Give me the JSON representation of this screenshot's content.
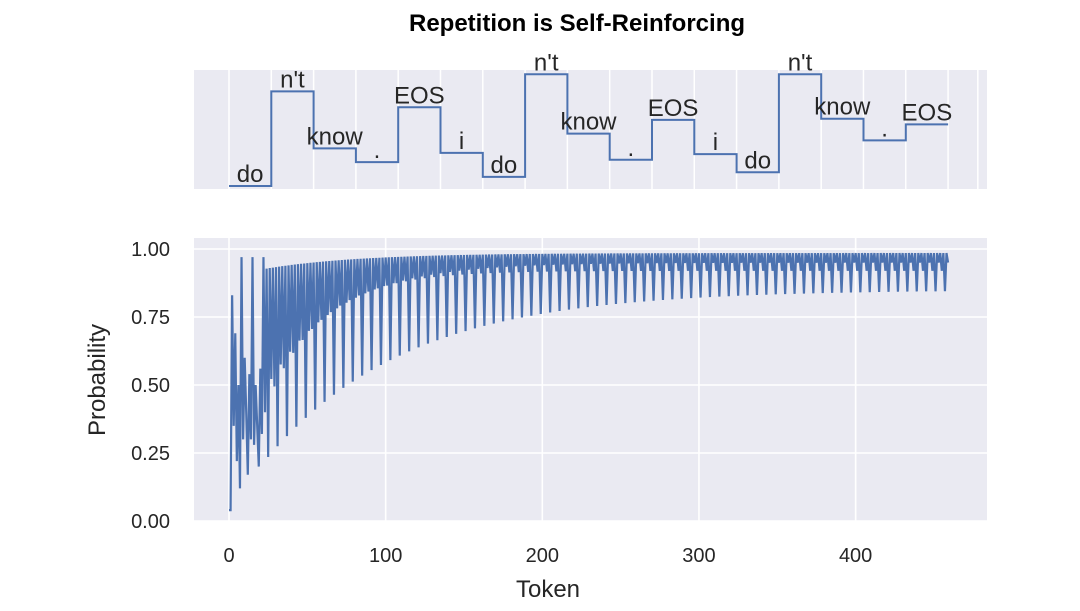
{
  "chart_data": [
    {
      "type": "line",
      "subtype": "step",
      "panel": "token-sequence",
      "title": "Repetition is Self-Reinforcing",
      "xlabel": "",
      "ylabel": "",
      "grid": true,
      "series_color": "#4c72b0",
      "background": "#eaeaf2",
      "tokens": [
        {
          "label": "do",
          "x_start": 0,
          "x_end": 27,
          "level": 0.0
        },
        {
          "label": "n't",
          "x_start": 27,
          "x_end": 54,
          "level": 0.83
        },
        {
          "label": "know",
          "x_start": 54,
          "x_end": 81,
          "level": 0.33
        },
        {
          "label": ".",
          "x_start": 81,
          "x_end": 108,
          "level": 0.21
        },
        {
          "label": "EOS",
          "x_start": 108,
          "x_end": 135,
          "level": 0.69
        },
        {
          "label": "i",
          "x_start": 135,
          "x_end": 162,
          "level": 0.29
        },
        {
          "label": "do",
          "x_start": 162,
          "x_end": 189,
          "level": 0.08
        },
        {
          "label": "n't",
          "x_start": 189,
          "x_end": 216,
          "level": 0.98
        },
        {
          "label": "know",
          "x_start": 216,
          "x_end": 243,
          "level": 0.46
        },
        {
          "label": ".",
          "x_start": 243,
          "x_end": 270,
          "level": 0.23
        },
        {
          "label": "EOS",
          "x_start": 270,
          "x_end": 297,
          "level": 0.58
        },
        {
          "label": "i",
          "x_start": 297,
          "x_end": 324,
          "level": 0.28
        },
        {
          "label": "do",
          "x_start": 324,
          "x_end": 351,
          "level": 0.12
        },
        {
          "label": "n't",
          "x_start": 351,
          "x_end": 378,
          "level": 0.98
        },
        {
          "label": "know",
          "x_start": 378,
          "x_end": 405,
          "level": 0.59
        },
        {
          "label": ".",
          "x_start": 405,
          "x_end": 432,
          "level": 0.4
        },
        {
          "label": "EOS",
          "x_start": 432,
          "x_end": 459,
          "level": 0.54
        }
      ]
    },
    {
      "type": "line",
      "panel": "probability",
      "xlabel": "Token",
      "ylabel": "Probability",
      "xlim": [
        -15,
        480
      ],
      "ylim": [
        0,
        1.03
      ],
      "xticks": [
        0,
        100,
        200,
        300,
        400
      ],
      "xtick_labels": [
        "0",
        "100",
        "200",
        "300",
        "400"
      ],
      "yticks": [
        0,
        0.25,
        0.5,
        0.75,
        1.0
      ],
      "ytick_labels": [
        "0.00",
        "0.25",
        "0.50",
        "0.75",
        "1.00"
      ],
      "grid": true,
      "series_color": "#4c72b0",
      "background": "#eaeaf2",
      "n_tokens": 460,
      "points": [
        [
          0,
          0.04
        ],
        [
          1,
          0.04
        ],
        [
          2,
          0.83
        ],
        [
          3,
          0.35
        ],
        [
          4,
          0.69
        ],
        [
          5,
          0.22
        ],
        [
          6,
          0.5
        ],
        [
          7,
          0.12
        ],
        [
          8,
          0.97
        ],
        [
          9,
          0.3
        ],
        [
          10,
          0.6
        ],
        [
          11,
          0.4
        ],
        [
          12,
          0.17
        ],
        [
          13,
          0.54
        ],
        [
          14,
          0.3
        ],
        [
          15,
          0.97
        ],
        [
          16,
          0.28
        ],
        [
          17,
          0.5
        ],
        [
          18,
          0.35
        ],
        [
          19,
          0.2
        ],
        [
          20,
          0.56
        ],
        [
          21,
          0.32
        ],
        [
          22,
          0.97
        ],
        [
          23,
          0.4
        ]
      ]
    }
  ]
}
